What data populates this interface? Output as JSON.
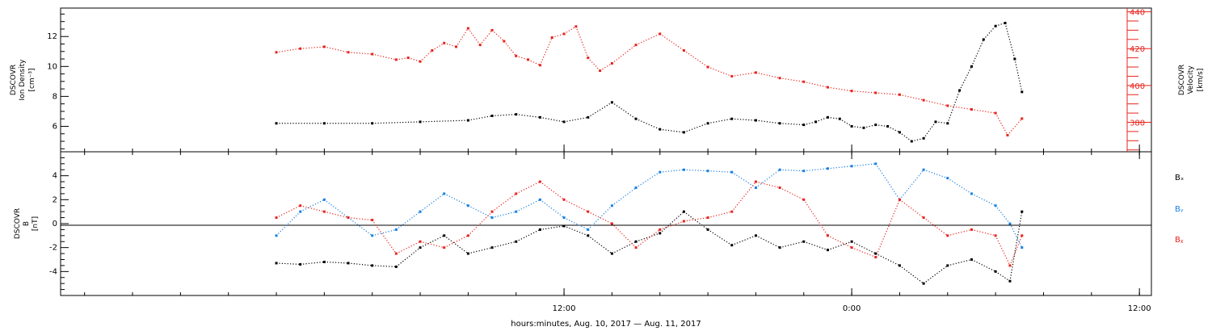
{
  "chart_data": [
    {
      "type": "scatter",
      "panel": "top",
      "ylabel_left": [
        "DSCOVR",
        "Ion Density",
        "[cm⁻³]"
      ],
      "ylabel_right": [
        "DSCOVR",
        "Velocity",
        "[km/s]"
      ],
      "ylim_left": [
        4.3,
        13.9
      ],
      "ylim_right": [
        364,
        442
      ],
      "yticks_left": [
        "6",
        "8",
        "10",
        "12"
      ],
      "yticks_right": [
        "380",
        "400",
        "420",
        "440"
      ],
      "colors": {
        "density": "#000000",
        "velocity": "#e8231c"
      },
      "series": [
        {
          "name": "Ion Density",
          "axis": "left",
          "color": "#000000",
          "x": [
            0,
            2,
            4,
            6,
            8,
            9,
            10,
            11,
            12,
            13,
            14,
            15,
            16,
            17,
            18,
            19,
            20,
            21,
            22,
            22.5,
            23,
            23.5,
            24,
            24.5,
            25,
            25.5,
            26,
            26.5,
            27,
            27.5,
            28,
            28.5,
            29,
            29.5,
            30,
            30.4,
            30.8,
            31.1
          ],
          "y": [
            6.2,
            6.2,
            6.2,
            6.3,
            6.4,
            6.7,
            6.8,
            6.6,
            6.3,
            6.6,
            7.6,
            6.5,
            5.8,
            5.6,
            6.2,
            6.5,
            6.4,
            6.2,
            6.1,
            6.3,
            6.6,
            6.5,
            6.0,
            5.9,
            6.1,
            6.0,
            5.6,
            5.0,
            5.2,
            6.3,
            6.2,
            8.4,
            10.0,
            11.8,
            12.7,
            12.9,
            10.5,
            8.3
          ]
        },
        {
          "name": "Velocity",
          "axis": "right",
          "color": "#e8231c",
          "x": [
            0,
            1,
            2,
            3,
            4,
            5,
            5.5,
            6,
            6.5,
            7,
            7.5,
            8,
            8.5,
            9,
            9.5,
            10,
            10.5,
            11,
            11.5,
            12,
            12.5,
            13,
            13.5,
            14,
            15,
            16,
            17,
            18,
            19,
            20,
            21,
            22,
            23,
            24,
            25,
            26,
            27,
            28,
            29,
            30,
            30.5,
            31.1
          ],
          "y": [
            418,
            420,
            421,
            418,
            417,
            414,
            415,
            413,
            419,
            423,
            421,
            431,
            422,
            430,
            424,
            416,
            414,
            411,
            426,
            428,
            432,
            415,
            408,
            412,
            422,
            428,
            419,
            410,
            405,
            407,
            404,
            402,
            399,
            397,
            396,
            395,
            392,
            389,
            387,
            385,
            373,
            382
          ]
        }
      ]
    },
    {
      "type": "scatter",
      "panel": "bottom",
      "ylabel_left": [
        "DSCOVR",
        "B",
        "[nT]"
      ],
      "ylim": [
        -6,
        6
      ],
      "yticks": [
        "-4",
        "-2",
        "0",
        "2",
        "4"
      ],
      "zero_line": true,
      "legend": [
        "Bₓ",
        "Bᵧ",
        "Bᵪ"
      ],
      "legend_position": "right",
      "series": [
        {
          "name": "Bx",
          "color": "#000000",
          "x": [
            0,
            1,
            2,
            3,
            4,
            5,
            6,
            7,
            8,
            9,
            10,
            11,
            12,
            13,
            14,
            15,
            16,
            17,
            18,
            19,
            20,
            21,
            22,
            23,
            24,
            25,
            26,
            27,
            28,
            29,
            30,
            30.6,
            31.1
          ],
          "y": [
            -3.3,
            -3.4,
            -3.2,
            -3.3,
            -3.5,
            -3.6,
            -2.0,
            -1.0,
            -2.5,
            -2.0,
            -1.5,
            -0.5,
            -0.2,
            -1.0,
            -2.5,
            -1.5,
            -0.8,
            1.0,
            -0.5,
            -1.8,
            -1.0,
            -2.0,
            -1.5,
            -2.2,
            -1.5,
            -2.5,
            -3.5,
            -5.0,
            -3.5,
            -3.0,
            -4.0,
            -4.8,
            1.0
          ]
        },
        {
          "name": "By",
          "color": "#1a7fe0",
          "x": [
            0,
            1,
            2,
            3,
            4,
            5,
            6,
            7,
            8,
            9,
            10,
            11,
            12,
            13,
            14,
            15,
            16,
            17,
            18,
            19,
            20,
            21,
            22,
            23,
            24,
            25,
            26,
            27,
            28,
            29,
            30,
            30.6,
            31.1
          ],
          "y": [
            -1.0,
            1.0,
            2.0,
            0.5,
            -1.0,
            -0.5,
            1.0,
            2.5,
            1.5,
            0.5,
            1.0,
            2.0,
            0.5,
            -0.5,
            1.5,
            3.0,
            4.3,
            4.5,
            4.4,
            4.3,
            3.0,
            4.5,
            4.4,
            4.6,
            4.8,
            5.0,
            2.0,
            4.5,
            3.8,
            2.5,
            1.5,
            0.0,
            -2.0
          ]
        },
        {
          "name": "Bz",
          "color": "#e8231c",
          "x": [
            0,
            1,
            2,
            3,
            4,
            5,
            6,
            7,
            8,
            9,
            10,
            11,
            12,
            13,
            14,
            15,
            16,
            17,
            18,
            19,
            20,
            21,
            22,
            23,
            24,
            25,
            26,
            27,
            28,
            29,
            30,
            30.6,
            31.1
          ],
          "y": [
            0.5,
            1.5,
            1.0,
            0.5,
            0.3,
            -2.5,
            -1.5,
            -2.0,
            -1.0,
            1.0,
            2.5,
            3.5,
            2.0,
            1.0,
            0.0,
            -2.0,
            -0.5,
            0.2,
            0.5,
            1.0,
            3.5,
            3.0,
            2.0,
            -1.0,
            -2.0,
            -2.8,
            2.0,
            0.5,
            -1.0,
            -0.5,
            -1.0,
            -3.5,
            -1.0
          ]
        }
      ]
    }
  ],
  "x_axis": {
    "label": "hours:minutes, Aug. 10, 2017 — Aug. 11, 2017",
    "range_hours": [
      -9,
      36.5
    ],
    "major_ticks": [
      {
        "hour": 12,
        "label": "12:00"
      },
      {
        "hour": 24,
        "label": "0:00"
      },
      {
        "hour": 36,
        "label": "12:00"
      }
    ],
    "minor_tick_step_hours": 2
  }
}
